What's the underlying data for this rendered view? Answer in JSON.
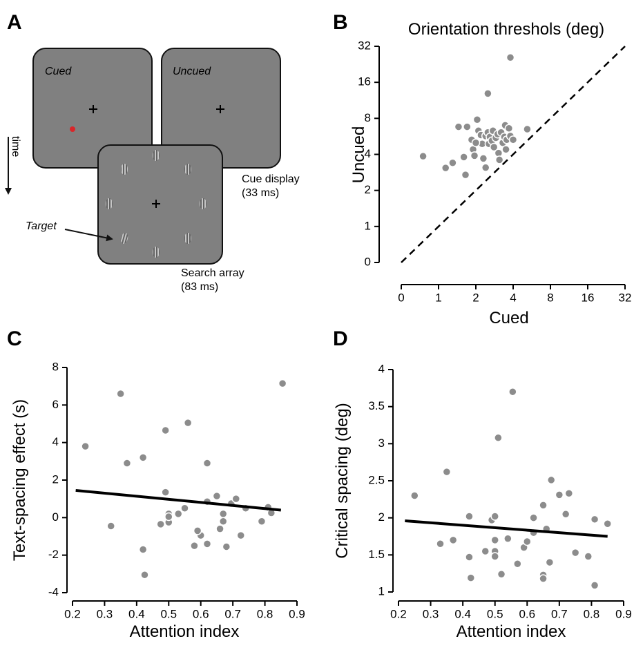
{
  "diagram": {
    "panel": "A",
    "cued": "Cued",
    "uncued": "Uncued",
    "time": "time",
    "target": "Target",
    "cue_display": "Cue display",
    "cue_duration": "(33 ms)",
    "search_array": "Search array",
    "search_duration": "(83 ms)"
  },
  "chart_data": [
    {
      "type": "scatter",
      "panel": "B",
      "title": "Orientation threshols (deg)",
      "xlabel": "Cued",
      "ylabel": "Uncued",
      "log_scale": true,
      "identity_line": true,
      "color": "#8c8c8c",
      "xlim": [
        0.5,
        32
      ],
      "ylim": [
        0.5,
        32
      ],
      "xticks": [
        {
          "value": 0.5,
          "label": "0"
        },
        1,
        2,
        4,
        8,
        16,
        32
      ],
      "yticks": [
        {
          "value": 0.5,
          "label": "0"
        },
        1,
        2,
        4,
        8,
        16,
        32
      ],
      "x": [
        0.75,
        1.14,
        1.65,
        3.8,
        2.5,
        5.2,
        1.3,
        1.45,
        1.7,
        1.85,
        1.9,
        1.95,
        2.05,
        2.1,
        2.2,
        2.25,
        2.3,
        2.4,
        2.4,
        2.5,
        2.55,
        2.6,
        2.7,
        2.75,
        2.8,
        2.9,
        3.0,
        3.05,
        3.1,
        3.2,
        3.3,
        3.4,
        3.45,
        3.5,
        3.55,
        3.7,
        3.8,
        4.0,
        2.0,
        1.6
      ],
      "values": [
        3.86,
        3.08,
        2.7,
        25.8,
        12.9,
        6.5,
        3.4,
        6.8,
        6.8,
        5.3,
        4.4,
        3.9,
        7.8,
        6.3,
        5.8,
        4.9,
        3.7,
        3.1,
        5.7,
        6.1,
        4.9,
        5.6,
        5.2,
        6.3,
        4.6,
        5.5,
        5.9,
        4.1,
        3.6,
        6.1,
        5.0,
        5.6,
        7.0,
        4.4,
        5.3,
        6.6,
        5.7,
        5.3,
        5.0,
        3.8
      ]
    },
    {
      "type": "scatter",
      "panel": "C",
      "xlabel": "Attention index",
      "ylabel": "Text-spacing effect (s)",
      "color": "#8c8c8c",
      "xlim": [
        0.2,
        0.9
      ],
      "ylim": [
        -4,
        8
      ],
      "xticks": [
        0.2,
        0.3,
        0.4,
        0.5,
        0.6,
        0.7,
        0.8,
        0.9
      ],
      "yticks": [
        -4,
        -2,
        0,
        2,
        4,
        6,
        8
      ],
      "x": [
        0.24,
        0.35,
        0.32,
        0.37,
        0.42,
        0.42,
        0.425,
        0.49,
        0.49,
        0.5,
        0.5,
        0.53,
        0.55,
        0.56,
        0.475,
        0.58,
        0.6,
        0.59,
        0.62,
        0.62,
        0.62,
        0.65,
        0.66,
        0.67,
        0.67,
        0.68,
        0.695,
        0.71,
        0.725,
        0.74,
        0.79,
        0.81,
        0.82,
        0.855,
        0.5
      ],
      "values": [
        3.8,
        6.6,
        -0.45,
        2.9,
        3.2,
        -1.7,
        -3.05,
        4.65,
        1.35,
        0.2,
        -0.25,
        0.2,
        0.5,
        5.05,
        -0.35,
        -1.5,
        -0.95,
        -0.7,
        2.9,
        -1.4,
        0.85,
        1.15,
        -0.6,
        0.2,
        -0.2,
        -1.55,
        0.75,
        1.0,
        -0.95,
        0.5,
        -0.2,
        0.55,
        0.25,
        7.15,
        0.05
      ],
      "fit": {
        "x": [
          0.21,
          0.85
        ],
        "values": [
          1.45,
          0.4
        ]
      }
    },
    {
      "type": "scatter",
      "panel": "D",
      "xlabel": "Attention index",
      "ylabel": "Critical spacing (deg)",
      "color": "#8c8c8c",
      "xlim": [
        0.2,
        0.9
      ],
      "ylim": [
        1,
        4
      ],
      "xticks": [
        0.2,
        0.3,
        0.4,
        0.5,
        0.6,
        0.7,
        0.8,
        0.9
      ],
      "yticks": [
        1,
        1.5,
        2,
        2.5,
        3,
        3.5,
        4
      ],
      "x": [
        0.25,
        0.33,
        0.35,
        0.37,
        0.42,
        0.42,
        0.425,
        0.47,
        0.49,
        0.5,
        0.5,
        0.5,
        0.5,
        0.51,
        0.52,
        0.54,
        0.555,
        0.57,
        0.59,
        0.6,
        0.62,
        0.62,
        0.65,
        0.65,
        0.65,
        0.66,
        0.67,
        0.675,
        0.7,
        0.72,
        0.73,
        0.75,
        0.79,
        0.81,
        0.81,
        0.85
      ],
      "values": [
        2.3,
        1.65,
        2.62,
        1.7,
        2.02,
        1.47,
        1.19,
        1.55,
        1.97,
        2.02,
        1.7,
        1.55,
        1.48,
        3.08,
        1.24,
        1.72,
        3.7,
        1.38,
        1.6,
        1.68,
        2.0,
        1.8,
        1.23,
        1.18,
        2.17,
        1.85,
        1.4,
        2.51,
        2.31,
        2.05,
        2.33,
        1.53,
        1.48,
        1.98,
        1.09,
        1.92
      ],
      "fit": {
        "x": [
          0.22,
          0.85
        ],
        "values": [
          1.96,
          1.75
        ]
      }
    }
  ]
}
